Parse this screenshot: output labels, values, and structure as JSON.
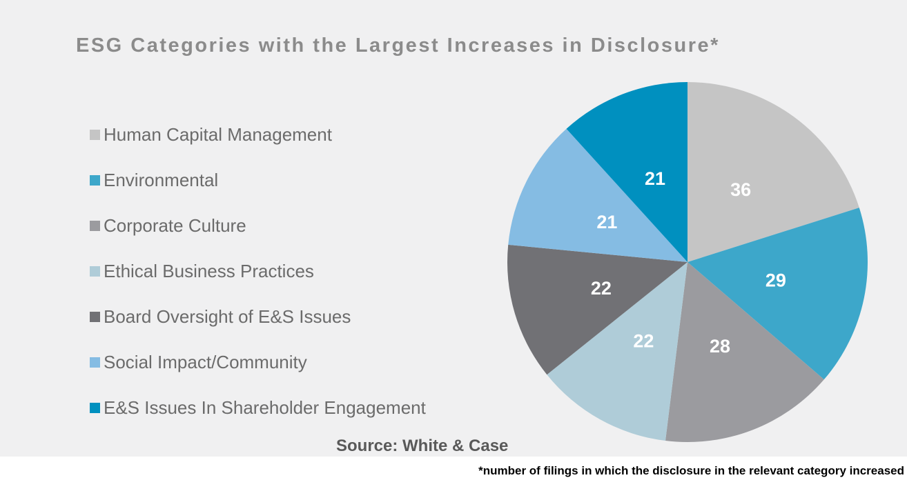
{
  "title": "ESG Categories with the Largest Increases in Disclosure*",
  "source": "Source: White & Case",
  "footnote": "*number of filings in which the disclosure in the relevant category increased",
  "colors": {
    "chart_background": "#F0F0F1",
    "page_background": "#FFFFFF",
    "title_text": "#8B8B8B",
    "legend_text": "#6B6B6B",
    "source_text": "#595959",
    "footnote_text": "#000000",
    "value_label_text": "#FFFFFF"
  },
  "chart_data": {
    "type": "pie",
    "title": "ESG Categories with the Largest Increases in Disclosure*",
    "legend_position": "left",
    "start_angle_deg": 0,
    "direction": "clockwise",
    "value_labels": "inside",
    "slices": [
      {
        "label": "Human Capital Management",
        "value": 36,
        "color": "#C5C5C5"
      },
      {
        "label": "Environmental",
        "value": 29,
        "color": "#3DA7CA"
      },
      {
        "label": "Corporate Culture",
        "value": 28,
        "color": "#9B9B9F"
      },
      {
        "label": "Ethical Business Practices",
        "value": 22,
        "color": "#AFCCD8"
      },
      {
        "label": "Board Oversight of E&S Issues",
        "value": 22,
        "color": "#717175"
      },
      {
        "label": "Social Impact/Community",
        "value": 21,
        "color": "#85BCE3"
      },
      {
        "label": "E&S Issues In Shareholder Engagement",
        "value": 21,
        "color": "#0090BF"
      }
    ]
  }
}
